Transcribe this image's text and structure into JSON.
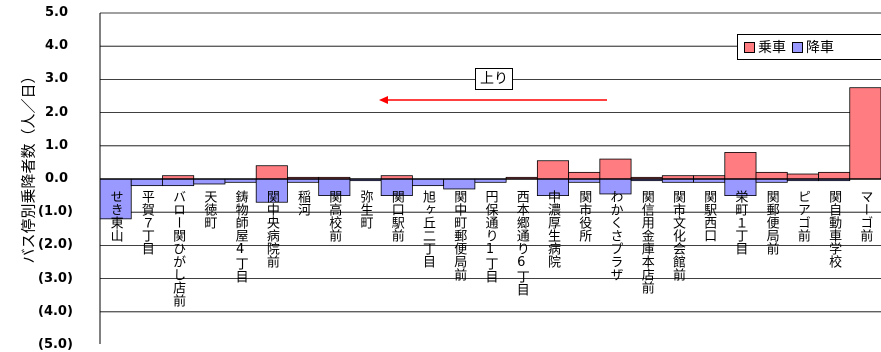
{
  "chart_data": {
    "type": "bar",
    "ylabel": "バス停別乗降者数（人／日）",
    "ylim": [
      -5.0,
      5.0
    ],
    "yticks": [
      "5.0",
      "4.0",
      "3.0",
      "2.0",
      "1.0",
      "0.0",
      "(1.0)",
      "(2.0)",
      "(3.0)",
      "(4.0)",
      "(5.0)"
    ],
    "ytick_values": [
      5,
      4,
      3,
      2,
      1,
      0,
      -1,
      -2,
      -3,
      -4,
      -5
    ],
    "categories": [
      "せき東山",
      "平賀７丁目",
      "バロー関ひがし店前",
      "天徳町",
      "鋳物師屋4丁目",
      "関中央病院前",
      "稲河",
      "関高校前",
      "弥生町",
      "関口駅前",
      "旭ヶ丘二丁目",
      "関中町郵便局前",
      "円保通り1丁目",
      "西本郷通り6丁目",
      "中濃厚生病院",
      "関市役所",
      "わかくさプラザ",
      "関信用金庫本店前",
      "関市文化会館前",
      "関駅西口",
      "栄町１丁目",
      "関郵便局前",
      "ピアゴ前",
      "関自動車学校",
      "マーゴ前"
    ],
    "series": [
      {
        "name": "乗車",
        "color": "#ff7c80",
        "values": [
          0.0,
          0.0,
          0.1,
          0.0,
          0.0,
          0.4,
          0.05,
          0.05,
          0.0,
          0.1,
          0.0,
          0.0,
          0.0,
          0.05,
          0.55,
          0.2,
          0.6,
          0.05,
          0.1,
          0.1,
          0.8,
          0.2,
          0.15,
          0.2,
          2.75
        ]
      },
      {
        "name": "降車",
        "color": "#9999ff",
        "values": [
          -1.2,
          -0.2,
          -0.2,
          -0.15,
          -0.1,
          -0.7,
          -0.1,
          -0.5,
          -0.05,
          -0.5,
          -0.2,
          -0.3,
          -0.1,
          0.0,
          -0.5,
          -0.1,
          -0.45,
          -0.05,
          -0.1,
          -0.1,
          -0.5,
          -0.1,
          -0.05,
          -0.05,
          0.0
        ]
      }
    ],
    "legend": "top-right",
    "grid": true,
    "annotation": {
      "text": "上り",
      "arrow": "left",
      "arrow_color": "#ff0000"
    }
  }
}
